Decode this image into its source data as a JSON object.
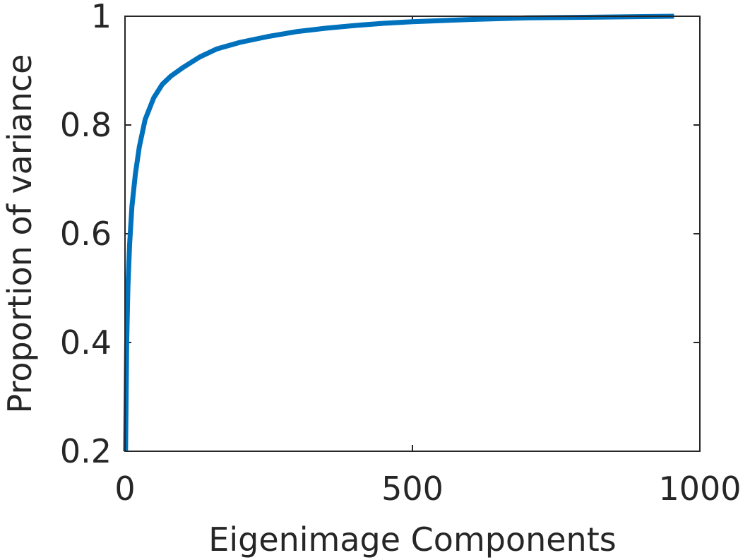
{
  "chart_data": {
    "type": "line",
    "xlabel": "Eigenimage Components",
    "ylabel": "Proportion of variance",
    "xlim": [
      0,
      1000
    ],
    "ylim": [
      0.2,
      1
    ],
    "x_ticks": [
      0,
      500,
      1000
    ],
    "x_tick_labels": [
      "0",
      "500",
      "1000"
    ],
    "y_ticks": [
      0.2,
      0.4,
      0.6,
      0.8,
      1
    ],
    "y_tick_labels": [
      "0.2",
      "0.4",
      "0.6",
      "0.8",
      "1"
    ],
    "grid": false,
    "colors": {
      "line": "#0072BD",
      "axes": "#262626"
    },
    "series": [
      {
        "x": [
          1,
          2,
          3,
          5,
          8,
          12,
          18,
          25,
          35,
          50,
          65,
          80,
          100,
          130,
          160,
          200,
          250,
          300,
          350,
          400,
          450,
          500,
          600,
          700,
          800,
          955
        ],
        "y": [
          0.2,
          0.3,
          0.4,
          0.5,
          0.58,
          0.65,
          0.71,
          0.76,
          0.81,
          0.85,
          0.875,
          0.89,
          0.905,
          0.925,
          0.94,
          0.952,
          0.963,
          0.972,
          0.978,
          0.983,
          0.987,
          0.99,
          0.994,
          0.997,
          0.998,
          1.0
        ]
      }
    ]
  }
}
